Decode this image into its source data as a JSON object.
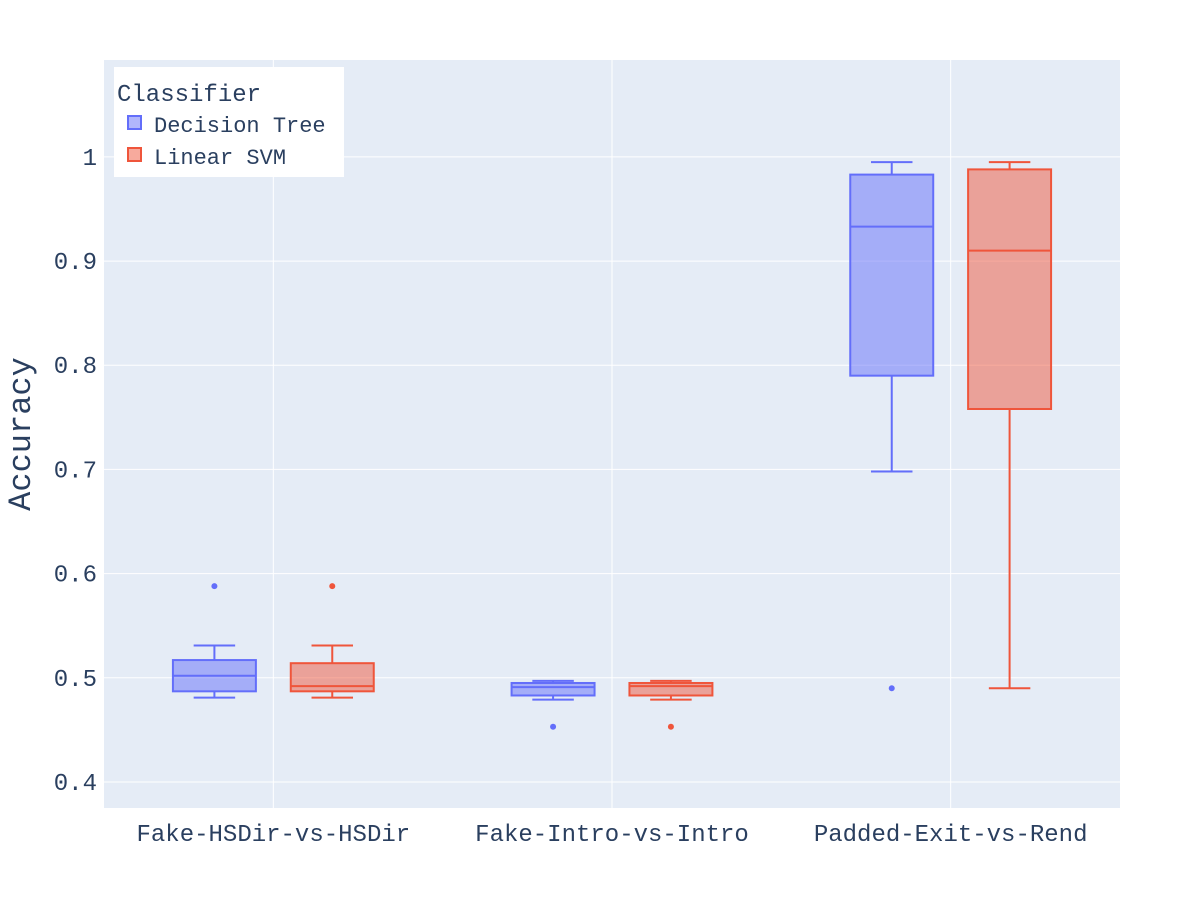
{
  "chart_data": {
    "type": "box",
    "ylabel": "Accuracy",
    "xlabel": "",
    "ylim": [
      0.375,
      1.093
    ],
    "yticks": [
      0.4,
      0.5,
      0.6,
      0.7,
      0.8,
      0.9,
      1
    ],
    "ytick_labels": [
      "0.4",
      "0.5",
      "0.6",
      "0.7",
      "0.8",
      "0.9",
      "1"
    ],
    "grid": true,
    "legend": {
      "title": "Classifier",
      "position": "top-left"
    },
    "categories": [
      "Fake-HSDir-vs-HSDir",
      "Fake-Intro-vs-Intro",
      "Padded-Exit-vs-Rend"
    ],
    "series": [
      {
        "name": "Decision Tree",
        "color": "#636efa",
        "fill": "rgba(99,110,250,0.5)",
        "boxes": [
          {
            "lower_whisker": 0.481,
            "q1": 0.487,
            "median": 0.502,
            "q3": 0.517,
            "upper_whisker": 0.531,
            "outliers": [
              0.588
            ]
          },
          {
            "lower_whisker": 0.479,
            "q1": 0.483,
            "median": 0.491,
            "q3": 0.495,
            "upper_whisker": 0.497,
            "outliers": [
              0.453
            ]
          },
          {
            "lower_whisker": 0.698,
            "q1": 0.79,
            "median": 0.933,
            "q3": 0.983,
            "upper_whisker": 0.995,
            "outliers": [
              0.49
            ]
          }
        ]
      },
      {
        "name": "Linear SVM",
        "color": "#ef553b",
        "fill": "rgba(239,85,59,0.5)",
        "boxes": [
          {
            "lower_whisker": 0.481,
            "q1": 0.487,
            "median": 0.492,
            "q3": 0.514,
            "upper_whisker": 0.531,
            "outliers": [
              0.588
            ]
          },
          {
            "lower_whisker": 0.479,
            "q1": 0.483,
            "median": 0.492,
            "q3": 0.495,
            "upper_whisker": 0.497,
            "outliers": [
              0.453
            ]
          },
          {
            "lower_whisker": 0.49,
            "q1": 0.758,
            "median": 0.91,
            "q3": 0.988,
            "upper_whisker": 0.995,
            "outliers": []
          }
        ]
      }
    ]
  }
}
